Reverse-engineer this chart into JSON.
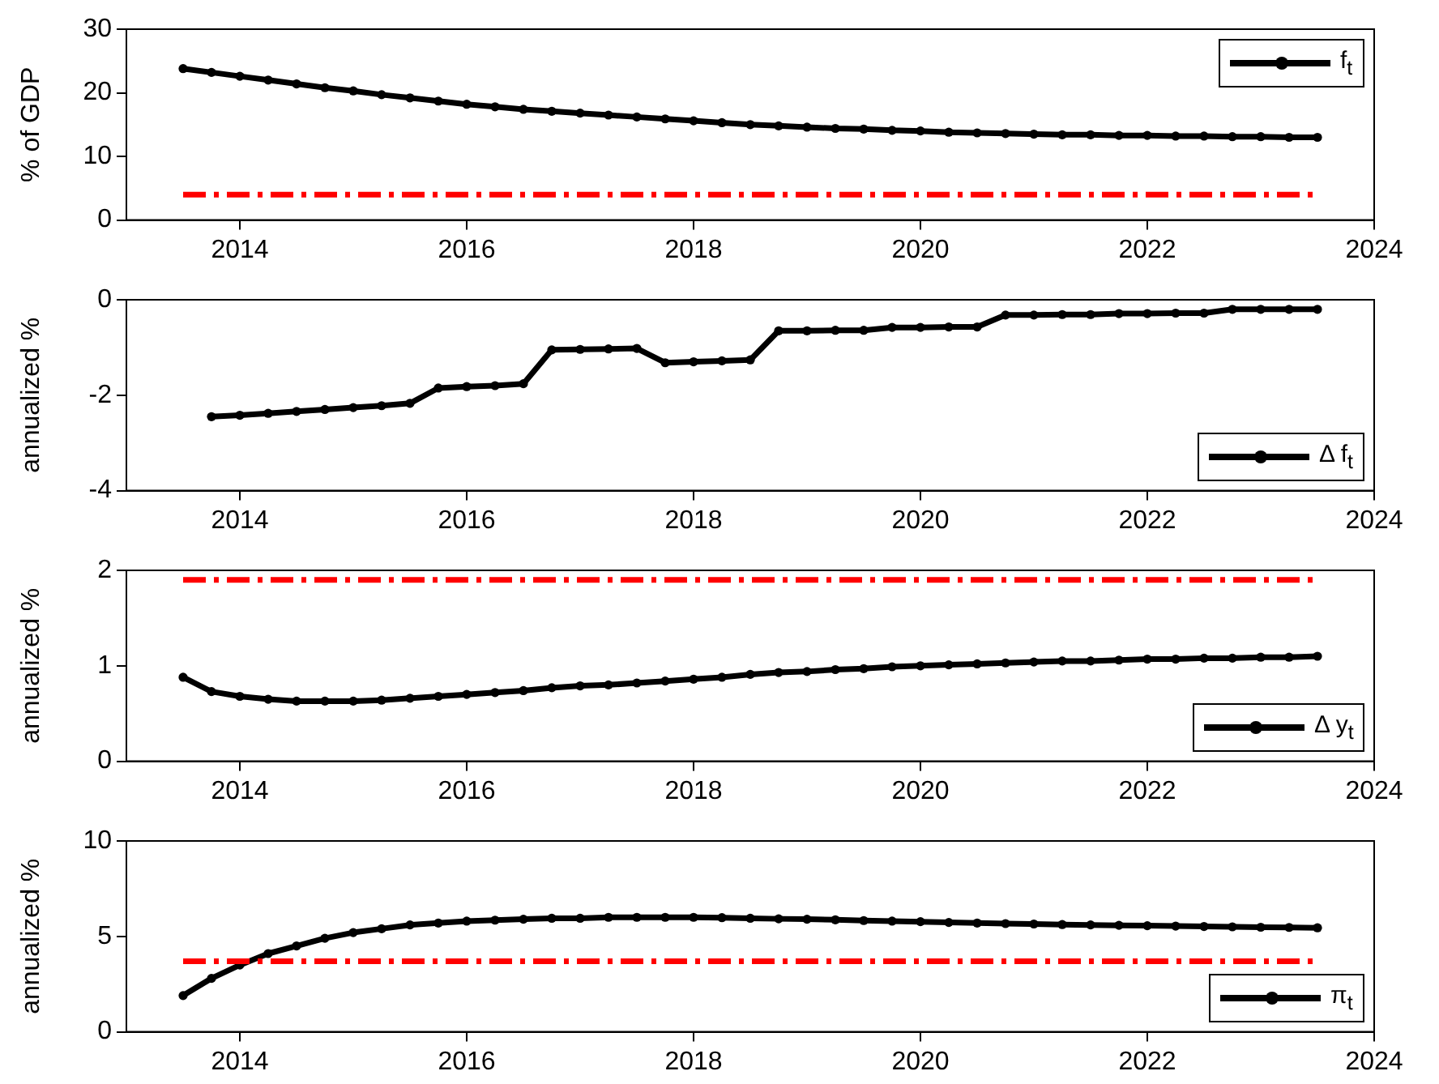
{
  "chart_data": [
    {
      "type": "line",
      "ylabel": "% of GDP",
      "x": [
        2013.5,
        2013.75,
        2014,
        2014.25,
        2014.5,
        2014.75,
        2015,
        2015.25,
        2015.5,
        2015.75,
        2016,
        2016.25,
        2016.5,
        2016.75,
        2017,
        2017.25,
        2017.5,
        2017.75,
        2018,
        2018.25,
        2018.5,
        2018.75,
        2019,
        2019.25,
        2019.5,
        2019.75,
        2020,
        2020.25,
        2020.5,
        2020.75,
        2021,
        2021.25,
        2021.5,
        2021.75,
        2022,
        2022.25,
        2022.5,
        2022.75,
        2023,
        2023.25,
        2023.5
      ],
      "series": [
        {
          "name": "f$_{t}$",
          "color": "#000000",
          "values": [
            23.8,
            23.2,
            22.6,
            22.0,
            21.4,
            20.8,
            20.3,
            19.7,
            19.2,
            18.7,
            18.2,
            17.8,
            17.4,
            17.1,
            16.8,
            16.5,
            16.2,
            15.9,
            15.6,
            15.3,
            15.0,
            14.8,
            14.6,
            14.4,
            14.3,
            14.1,
            14.0,
            13.8,
            13.7,
            13.6,
            13.5,
            13.4,
            13.4,
            13.3,
            13.3,
            13.2,
            13.2,
            13.1,
            13.1,
            13.0,
            13.0
          ]
        }
      ],
      "ref_lines": [
        {
          "axis": "y",
          "value": 4,
          "color": "#ff0000",
          "line_style": "dashdot"
        }
      ],
      "xlim": [
        2013,
        2024
      ],
      "xticks": [
        2014,
        2016,
        2018,
        2020,
        2022,
        2024
      ],
      "ylim": [
        0,
        30
      ],
      "yticks": [
        0,
        10,
        20,
        30
      ],
      "grid": false,
      "legend": "top right",
      "marker": "circle",
      "line_style": "solid"
    },
    {
      "type": "line",
      "ylabel": "annualized %",
      "x": [
        2013.75,
        2014,
        2014.25,
        2014.5,
        2014.75,
        2015,
        2015.25,
        2015.5,
        2015.75,
        2016,
        2016.25,
        2016.5,
        2016.75,
        2017,
        2017.25,
        2017.5,
        2017.75,
        2018,
        2018.25,
        2018.5,
        2018.75,
        2019,
        2019.25,
        2019.5,
        2019.75,
        2020,
        2020.25,
        2020.5,
        2020.75,
        2021,
        2021.25,
        2021.5,
        2021.75,
        2022,
        2022.25,
        2022.5,
        2022.75,
        2023,
        2023.25,
        2023.5
      ],
      "series": [
        {
          "name": "Δ f$_{t}$",
          "color": "#000000",
          "values": [
            -2.45,
            -2.42,
            -2.38,
            -2.34,
            -2.3,
            -2.26,
            -2.22,
            -2.17,
            -1.85,
            -1.82,
            -1.8,
            -1.76,
            -1.05,
            -1.04,
            -1.03,
            -1.02,
            -1.32,
            -1.3,
            -1.28,
            -1.26,
            -0.65,
            -0.65,
            -0.64,
            -0.64,
            -0.58,
            -0.58,
            -0.57,
            -0.57,
            -0.32,
            -0.32,
            -0.31,
            -0.31,
            -0.29,
            -0.29,
            -0.28,
            -0.28,
            -0.2,
            -0.2,
            -0.2,
            -0.2
          ]
        }
      ],
      "xlim": [
        2013,
        2024
      ],
      "xticks": [
        2014,
        2016,
        2018,
        2020,
        2022,
        2024
      ],
      "ylim": [
        -4,
        0
      ],
      "yticks": [
        -4,
        -2,
        0
      ],
      "grid": false,
      "legend": "bottom right",
      "marker": "circle",
      "line_style": "solid"
    },
    {
      "type": "line",
      "ylabel": "annualized %",
      "x": [
        2013.5,
        2013.75,
        2014,
        2014.25,
        2014.5,
        2014.75,
        2015,
        2015.25,
        2015.5,
        2015.75,
        2016,
        2016.25,
        2016.5,
        2016.75,
        2017,
        2017.25,
        2017.5,
        2017.75,
        2018,
        2018.25,
        2018.5,
        2018.75,
        2019,
        2019.25,
        2019.5,
        2019.75,
        2020,
        2020.25,
        2020.5,
        2020.75,
        2021,
        2021.25,
        2021.5,
        2021.75,
        2022,
        2022.25,
        2022.5,
        2022.75,
        2023,
        2023.25,
        2023.5
      ],
      "series": [
        {
          "name": "Δ y$_{t}$",
          "color": "#000000",
          "values": [
            0.88,
            0.73,
            0.68,
            0.65,
            0.63,
            0.63,
            0.63,
            0.64,
            0.66,
            0.68,
            0.7,
            0.72,
            0.74,
            0.77,
            0.79,
            0.8,
            0.82,
            0.84,
            0.86,
            0.88,
            0.91,
            0.93,
            0.94,
            0.96,
            0.97,
            0.99,
            1.0,
            1.01,
            1.02,
            1.03,
            1.04,
            1.05,
            1.05,
            1.06,
            1.07,
            1.07,
            1.08,
            1.08,
            1.09,
            1.09,
            1.1
          ]
        }
      ],
      "ref_lines": [
        {
          "axis": "y",
          "value": 1.9,
          "color": "#ff0000",
          "line_style": "dashdot"
        }
      ],
      "xlim": [
        2013,
        2024
      ],
      "xticks": [
        2014,
        2016,
        2018,
        2020,
        2022,
        2024
      ],
      "ylim": [
        0,
        2
      ],
      "yticks": [
        0,
        1,
        2
      ],
      "grid": false,
      "legend": "bottom right",
      "marker": "circle",
      "line_style": "solid"
    },
    {
      "type": "line",
      "ylabel": "annualized %",
      "x": [
        2013.5,
        2013.75,
        2014,
        2014.25,
        2014.5,
        2014.75,
        2015,
        2015.25,
        2015.5,
        2015.75,
        2016,
        2016.25,
        2016.5,
        2016.75,
        2017,
        2017.25,
        2017.5,
        2017.75,
        2018,
        2018.25,
        2018.5,
        2018.75,
        2019,
        2019.25,
        2019.5,
        2019.75,
        2020,
        2020.25,
        2020.5,
        2020.75,
        2021,
        2021.25,
        2021.5,
        2021.75,
        2022,
        2022.25,
        2022.5,
        2022.75,
        2023,
        2023.25,
        2023.5
      ],
      "series": [
        {
          "name": "π$_{t}$",
          "color": "#000000",
          "values": [
            1.9,
            2.8,
            3.5,
            4.1,
            4.5,
            4.9,
            5.2,
            5.4,
            5.6,
            5.7,
            5.8,
            5.85,
            5.9,
            5.95,
            5.95,
            6.0,
            6.0,
            6.0,
            6.0,
            5.98,
            5.95,
            5.92,
            5.9,
            5.87,
            5.83,
            5.8,
            5.77,
            5.73,
            5.7,
            5.67,
            5.65,
            5.62,
            5.6,
            5.58,
            5.56,
            5.54,
            5.52,
            5.5,
            5.48,
            5.47,
            5.45
          ]
        }
      ],
      "ref_lines": [
        {
          "axis": "y",
          "value": 3.7,
          "color": "#ff0000",
          "line_style": "dashdot"
        }
      ],
      "xlim": [
        2013,
        2024
      ],
      "xticks": [
        2014,
        2016,
        2018,
        2020,
        2022,
        2024
      ],
      "ylim": [
        0,
        10
      ],
      "yticks": [
        0,
        5,
        10
      ],
      "grid": false,
      "legend": "bottom right",
      "marker": "circle",
      "line_style": "solid"
    }
  ]
}
